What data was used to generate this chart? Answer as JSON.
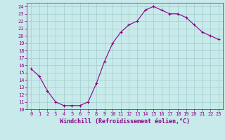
{
  "x": [
    0,
    1,
    2,
    3,
    4,
    5,
    6,
    7,
    8,
    9,
    10,
    11,
    12,
    13,
    14,
    15,
    16,
    17,
    18,
    19,
    20,
    21,
    22,
    23
  ],
  "y": [
    15.5,
    14.5,
    12.5,
    11.0,
    10.5,
    10.5,
    10.5,
    11.0,
    13.5,
    16.5,
    19.0,
    20.5,
    21.5,
    22.0,
    23.5,
    24.0,
    23.5,
    23.0,
    23.0,
    22.5,
    21.5,
    20.5,
    20.0,
    19.5
  ],
  "line_color": "#880088",
  "marker": "+",
  "bg_color": "#c8eaea",
  "grid_color": "#a0cccc",
  "xlabel": "Windchill (Refroidissement éolien,°C)",
  "xlim": [
    -0.5,
    23.5
  ],
  "ylim": [
    10,
    24.5
  ],
  "yticks": [
    10,
    11,
    12,
    13,
    14,
    15,
    16,
    17,
    18,
    19,
    20,
    21,
    22,
    23,
    24
  ],
  "xticks": [
    0,
    1,
    2,
    3,
    4,
    5,
    6,
    7,
    8,
    9,
    10,
    11,
    12,
    13,
    14,
    15,
    16,
    17,
    18,
    19,
    20,
    21,
    22,
    23
  ],
  "tick_color": "#880088",
  "tick_fontsize": 5.0,
  "xlabel_fontsize": 6.0
}
